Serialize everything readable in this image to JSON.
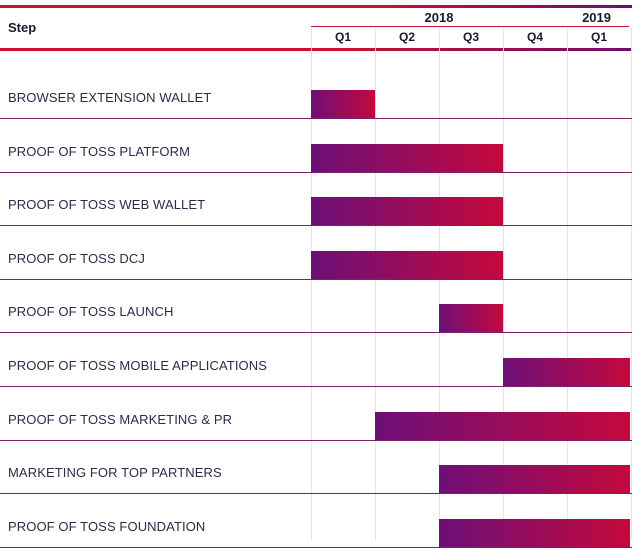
{
  "chart_data": {
    "type": "gantt",
    "header": {
      "step_label": "Step"
    },
    "years": [
      {
        "label": "2018",
        "quarters": [
          "Q1",
          "Q2",
          "Q3",
          "Q4"
        ]
      },
      {
        "label": "2019",
        "quarters": [
          "Q1"
        ]
      }
    ],
    "tasks": [
      {
        "label": "BROWSER EXTENSION WALLET",
        "start": 0,
        "end": 1
      },
      {
        "label": "PROOF OF TOSS PLATFORM",
        "start": 0,
        "end": 3
      },
      {
        "label": "PROOF OF TOSS WEB WALLET",
        "start": 0,
        "end": 3
      },
      {
        "label": "PROOF OF TOSS DCJ",
        "start": 0,
        "end": 3
      },
      {
        "label": "PROOF OF TOSS LAUNCH",
        "start": 2,
        "end": 3
      },
      {
        "label": "PROOF OF TOSS MOBILE APPLICATIONS",
        "start": 3,
        "end": 5
      },
      {
        "label": "PROOF OF TOSS MARKETING & PR",
        "start": 1,
        "end": 5
      },
      {
        "label": "MARKETING FOR TOP PARTNERS",
        "start": 2,
        "end": 5
      },
      {
        "label": "PROOF OF TOSS FOUNDATION",
        "start": 2,
        "end": 5
      }
    ],
    "colors": {
      "bar_start": "#6d0f78",
      "bar_end": "#c4093c",
      "accent": "#c8102e"
    },
    "grid": true
  }
}
